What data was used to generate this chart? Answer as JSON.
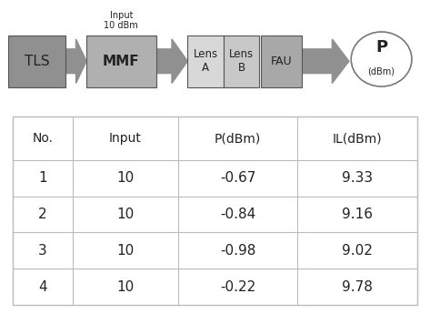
{
  "diagram": {
    "tls": {
      "label": "TLS",
      "color": "#909090"
    },
    "mmf": {
      "label": "MMF",
      "sublabel": "Input\n10 dBm",
      "color": "#b0b0b0"
    },
    "lensA": {
      "label": "Lens\nA",
      "color": "#d8d8d8"
    },
    "lensB": {
      "label": "Lens\nB",
      "color": "#c8c8c8"
    },
    "fau": {
      "label": "FAU",
      "color": "#a8a8a8"
    },
    "power": {
      "label": "P",
      "sublabel": "(dBm)",
      "color": "#ffffff"
    }
  },
  "arrow_color": "#909090",
  "table": {
    "headers": [
      "No.",
      "Input",
      "P(dBm)",
      "IL(dBm)"
    ],
    "rows": [
      [
        "1",
        "10",
        "-0.67",
        "9.33"
      ],
      [
        "2",
        "10",
        "-0.84",
        "9.16"
      ],
      [
        "3",
        "10",
        "-0.98",
        "9.02"
      ],
      [
        "4",
        "10",
        "-0.22",
        "9.78"
      ]
    ]
  },
  "bg_color": "#ffffff",
  "text_color": "#222222",
  "table_line_color": "#bbbbbb",
  "diag_fontsize": 9,
  "table_header_fontsize": 10,
  "table_data_fontsize": 11
}
